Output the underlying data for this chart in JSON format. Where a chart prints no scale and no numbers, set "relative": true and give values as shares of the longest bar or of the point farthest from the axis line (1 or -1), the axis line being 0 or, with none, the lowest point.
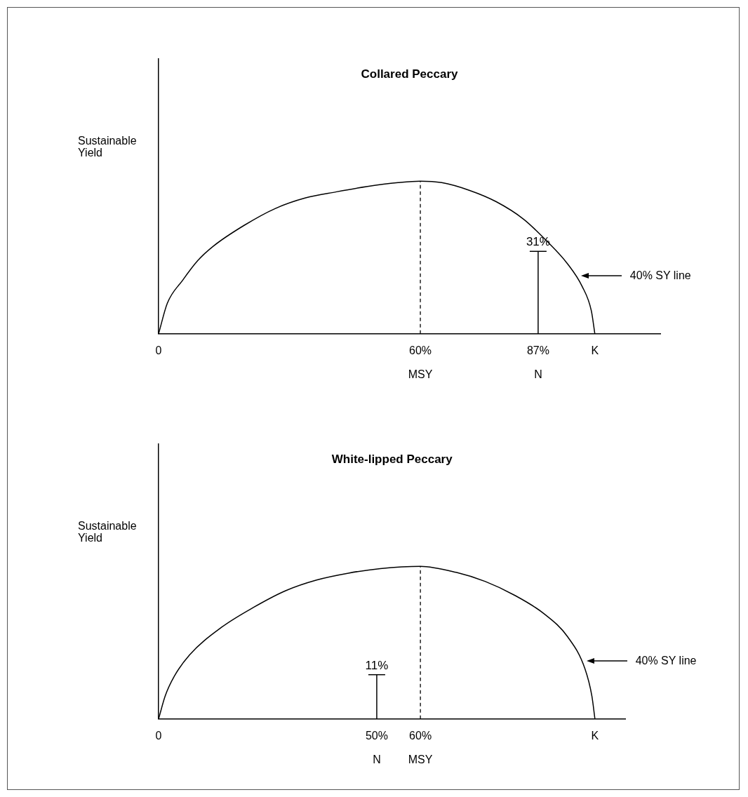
{
  "chart_data": [
    {
      "type": "line",
      "title": "Collared Peccary",
      "ylabel": "Sustainable Yield",
      "relative": true,
      "xlim": [
        0,
        115
      ],
      "xticks": [
        {
          "value": 0,
          "label": "0"
        },
        {
          "value": 60,
          "label": "60%\nMSY"
        },
        {
          "value": 87,
          "label": "87%\nN"
        },
        {
          "value": 100,
          "label": "K"
        }
      ],
      "tick_labels": "x",
      "grid": false,
      "legend": "right",
      "marker": "none",
      "series": [
        {
          "name": "40% SY line",
          "color": "#000000",
          "x": [
            0,
            2,
            5.5,
            9,
            12.6,
            19.6,
            26.7,
            33.7,
            40.8,
            47.9,
            54.9,
            60,
            64.9,
            71.2,
            77.4,
            83.7,
            88.9,
            93.7,
            97.1,
            99.2,
            100
          ],
          "values": [
            0,
            0.2,
            0.35,
            0.48,
            0.575,
            0.71,
            0.82,
            0.89,
            0.93,
            0.965,
            0.99,
            1,
            0.99,
            0.94,
            0.865,
            0.75,
            0.61,
            0.46,
            0.31,
            0.15,
            0
          ]
        },
        {
          "color": "#000000",
          "x": [
            87,
            87
          ],
          "values": [
            0,
            0.54
          ]
        }
      ],
      "ref_lines": [
        {
          "axis": "x",
          "value": 60,
          "line_style": "dashed",
          "color": "#000000"
        }
      ],
      "annotations": [
        {
          "text": "31%",
          "x": 87,
          "y": 0.54
        }
      ]
    },
    {
      "type": "line",
      "title": "White-lipped Peccary",
      "ylabel": "Sustainable Yield",
      "relative": true,
      "xlim": [
        0,
        107
      ],
      "xticks": [
        {
          "value": 0,
          "label": "0"
        },
        {
          "value": 50,
          "label": "50%\nN"
        },
        {
          "value": 60,
          "label": "60%\nMSY"
        },
        {
          "value": 100,
          "label": "K"
        }
      ],
      "tick_labels": "x",
      "grid": false,
      "legend": "right",
      "marker": "none",
      "series": [
        {
          "name": "40% SY line",
          "color": "#000000",
          "x": [
            0,
            1.5,
            3.6,
            7.1,
            14.4,
            21.7,
            29.1,
            36.2,
            43.5,
            50.8,
            60,
            68.2,
            74.9,
            81.6,
            88.3,
            93.7,
            97.7,
            99.3,
            100
          ],
          "values": [
            0,
            0.15,
            0.28,
            0.42,
            0.6,
            0.73,
            0.84,
            0.91,
            0.955,
            0.985,
            1,
            0.96,
            0.9,
            0.81,
            0.69,
            0.54,
            0.33,
            0.15,
            0
          ]
        },
        {
          "color": "#000000",
          "x": [
            50,
            50
          ],
          "values": [
            0,
            0.29
          ]
        }
      ],
      "ref_lines": [
        {
          "axis": "x",
          "value": 60,
          "line_style": "dashed",
          "color": "#000000"
        }
      ],
      "annotations": [
        {
          "text": "11%",
          "x": 50,
          "y": 0.29
        }
      ]
    }
  ]
}
